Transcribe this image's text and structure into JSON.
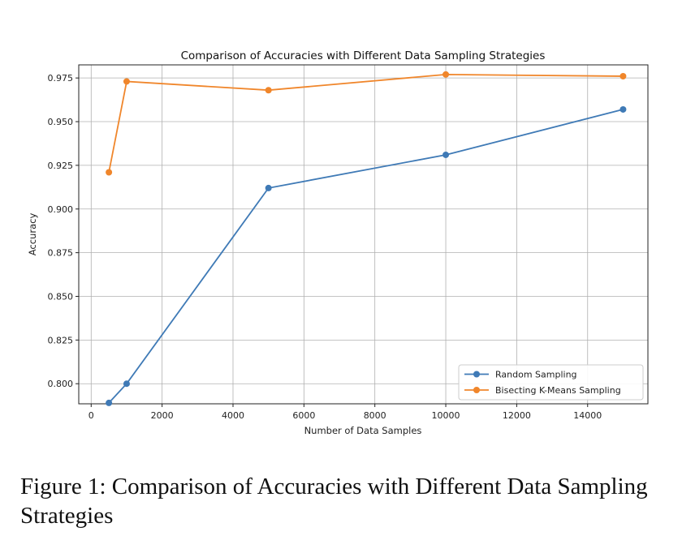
{
  "chart_data": {
    "type": "line",
    "title": "Comparison of Accuracies with Different Data Sampling Strategies",
    "xlabel": "Number of Data Samples",
    "ylabel": "Accuracy",
    "xlim": [
      -350,
      15700
    ],
    "ylim": [
      0.7885,
      0.9825
    ],
    "xticks": [
      0,
      2000,
      4000,
      6000,
      8000,
      10000,
      12000,
      14000
    ],
    "xtick_labels": [
      "0",
      "2000",
      "4000",
      "6000",
      "8000",
      "10000",
      "12000",
      "14000"
    ],
    "yticks": [
      0.8,
      0.825,
      0.85,
      0.875,
      0.9,
      0.925,
      0.95,
      0.975
    ],
    "ytick_labels": [
      "0.800",
      "0.825",
      "0.850",
      "0.875",
      "0.900",
      "0.925",
      "0.950",
      "0.975"
    ],
    "grid": true,
    "legend_position": "lower-right",
    "series": [
      {
        "name": "Random Sampling",
        "color": "#3f7ab6",
        "x": [
          500,
          1000,
          5000,
          10000,
          15000
        ],
        "y": [
          0.789,
          0.8,
          0.912,
          0.931,
          0.957
        ]
      },
      {
        "name": "Bisecting K-Means Sampling",
        "color": "#f0862b",
        "x": [
          500,
          1000,
          5000,
          10000,
          15000
        ],
        "y": [
          0.921,
          0.973,
          0.968,
          0.977,
          0.976
        ]
      }
    ]
  },
  "caption": "Figure 1: Comparison of Accuracies with Different Data Sampling Strategies"
}
